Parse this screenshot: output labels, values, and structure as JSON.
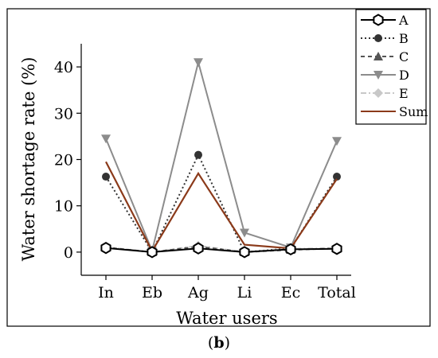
{
  "figure": {
    "panel_open": "(",
    "panel_letter": "b",
    "panel_close": ")"
  },
  "chart_data": {
    "type": "line",
    "xlabel": "Water users",
    "ylabel": "Water shortage rate (%)",
    "categories": [
      "In",
      "Eb",
      "Ag",
      "Li",
      "Ec",
      "Total"
    ],
    "ylim": [
      -5,
      45
    ],
    "yticks": [
      0,
      10,
      20,
      30,
      40
    ],
    "legend_position": "top-right",
    "series": [
      {
        "name": "A",
        "values": [
          0.9,
          0.0,
          0.8,
          0.0,
          0.6,
          0.7
        ],
        "color": "#000000",
        "dash": "solid",
        "marker": "hexagon"
      },
      {
        "name": "B",
        "values": [
          16.3,
          0.0,
          21.0,
          0.0,
          0.8,
          16.3
        ],
        "color": "#333333",
        "dash": "dotted",
        "marker": "circle"
      },
      {
        "name": "C",
        "values": [
          1.0,
          0.0,
          1.2,
          0.0,
          0.5,
          0.8
        ],
        "color": "#555555",
        "dash": "dashed",
        "marker": "triangle-up"
      },
      {
        "name": "D",
        "values": [
          24.5,
          0.3,
          41.0,
          4.2,
          1.0,
          24.0
        ],
        "color": "#8c8c8c",
        "dash": "solid",
        "marker": "triangle-down"
      },
      {
        "name": "E",
        "values": [
          1.1,
          0.0,
          1.4,
          0.0,
          0.7,
          0.9
        ],
        "color": "#c8c8c8",
        "dash": "dashdot",
        "marker": "diamond"
      },
      {
        "name": "Sum",
        "values": [
          19.5,
          0.2,
          17.0,
          1.6,
          0.8,
          15.8
        ],
        "color": "#8b3a1a",
        "dash": "solid",
        "marker": "none"
      }
    ]
  }
}
